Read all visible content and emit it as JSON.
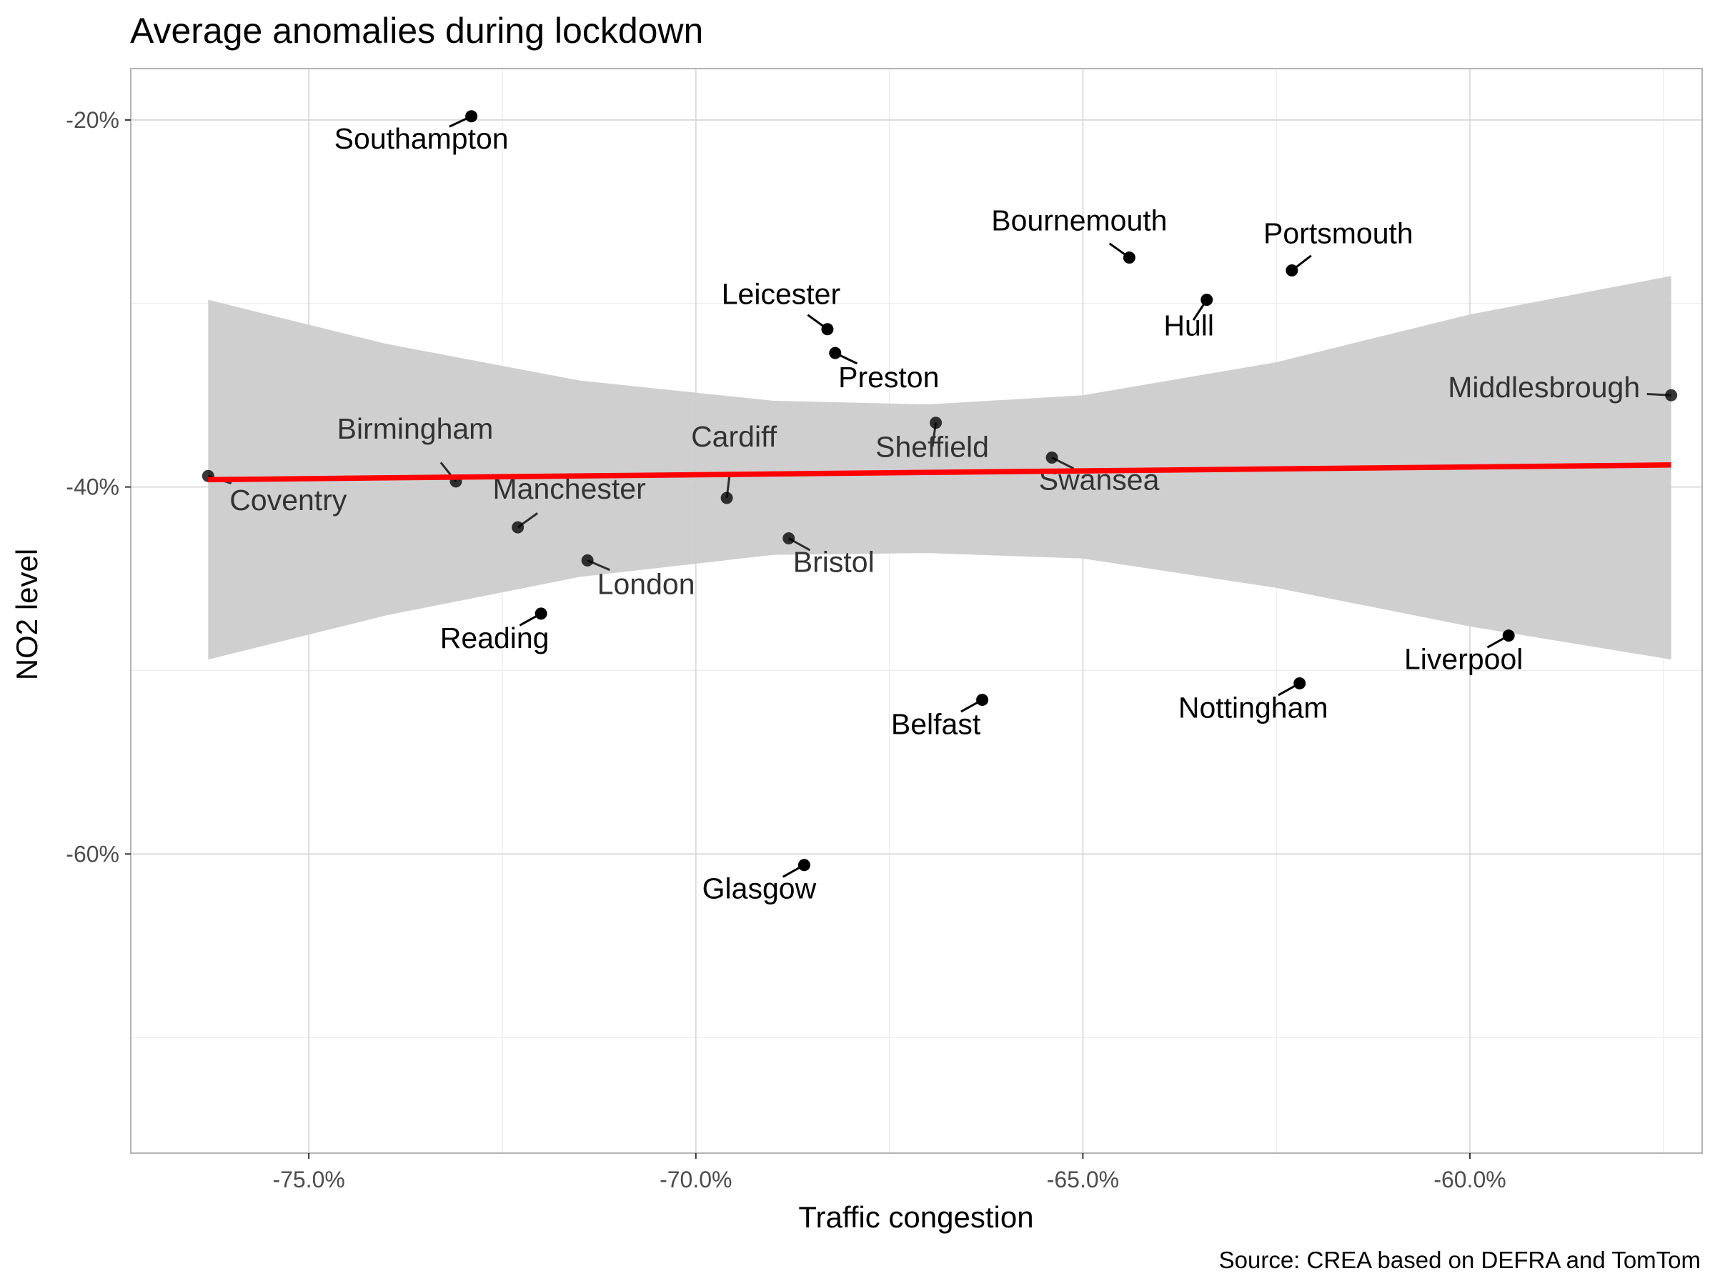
{
  "chart_data": {
    "type": "scatter",
    "title": "Average anomalies during lockdown",
    "xlabel": "Traffic congestion",
    "ylabel": "NO2 level",
    "caption": "Source: CREA based on DEFRA and TomTom",
    "xlim": [
      -77.3,
      -57.0
    ],
    "ylim": [
      -76.3,
      -17.2
    ],
    "x_ticks": [
      -75.0,
      -70.0,
      -65.0,
      -60.0
    ],
    "x_tick_labels": [
      "-75.0%",
      "-70.0%",
      "-65.0%",
      "-60.0%"
    ],
    "y_ticks": [
      -20,
      -40,
      -60
    ],
    "y_tick_labels": [
      "-20%",
      "-40%",
      "-60%"
    ],
    "grid": true,
    "colors": {
      "fit_line": "#ff0000",
      "ribbon": "#cccccc",
      "point": "#000000",
      "panel_border": "#b3b3b3",
      "grid_major": "#d9d9d9",
      "grid_minor": "#ebebeb"
    },
    "points": [
      {
        "name": "Southampton",
        "x": -72.9,
        "y": -19.8
      },
      {
        "name": "Bournemouth",
        "x": -64.4,
        "y": -27.5
      },
      {
        "name": "Portsmouth",
        "x": -62.3,
        "y": -28.2
      },
      {
        "name": "Hull",
        "x": -63.4,
        "y": -29.8
      },
      {
        "name": "Leicester",
        "x": -68.3,
        "y": -31.4
      },
      {
        "name": "Preston",
        "x": -68.2,
        "y": -32.7
      },
      {
        "name": "Middlesbrough",
        "x": -57.4,
        "y": -35.0
      },
      {
        "name": "Sheffield",
        "x": -66.9,
        "y": -36.5
      },
      {
        "name": "Swansea",
        "x": -65.4,
        "y": -38.4
      },
      {
        "name": "Coventry",
        "x": -76.3,
        "y": -39.4
      },
      {
        "name": "Birmingham",
        "x": -73.1,
        "y": -39.7
      },
      {
        "name": "Cardiff",
        "x": -69.6,
        "y": -40.6
      },
      {
        "name": "Manchester",
        "x": -72.3,
        "y": -42.2
      },
      {
        "name": "Bristol",
        "x": -68.8,
        "y": -42.8
      },
      {
        "name": "London",
        "x": -71.4,
        "y": -44.0
      },
      {
        "name": "Reading",
        "x": -72.0,
        "y": -46.9
      },
      {
        "name": "Liverpool",
        "x": -59.5,
        "y": -48.1
      },
      {
        "name": "Nottingham",
        "x": -62.2,
        "y": -50.7
      },
      {
        "name": "Belfast",
        "x": -66.3,
        "y": -51.6
      },
      {
        "name": "Glasgow",
        "x": -68.6,
        "y": -60.6
      }
    ],
    "fit": {
      "x": [
        -76.3,
        -57.4
      ],
      "y": [
        -39.6,
        -38.8
      ]
    },
    "ribbon": {
      "x": [
        -76.3,
        -74.0,
        -71.5,
        -69.0,
        -67.0,
        -65.0,
        -62.5,
        -60.0,
        -57.4
      ],
      "upper": [
        -29.8,
        -32.2,
        -34.2,
        -35.3,
        -35.5,
        -35.0,
        -33.2,
        -30.6,
        -28.5
      ],
      "lower": [
        -49.4,
        -47.0,
        -44.9,
        -43.7,
        -43.6,
        -43.9,
        -45.5,
        -47.6,
        -49.4
      ]
    }
  }
}
